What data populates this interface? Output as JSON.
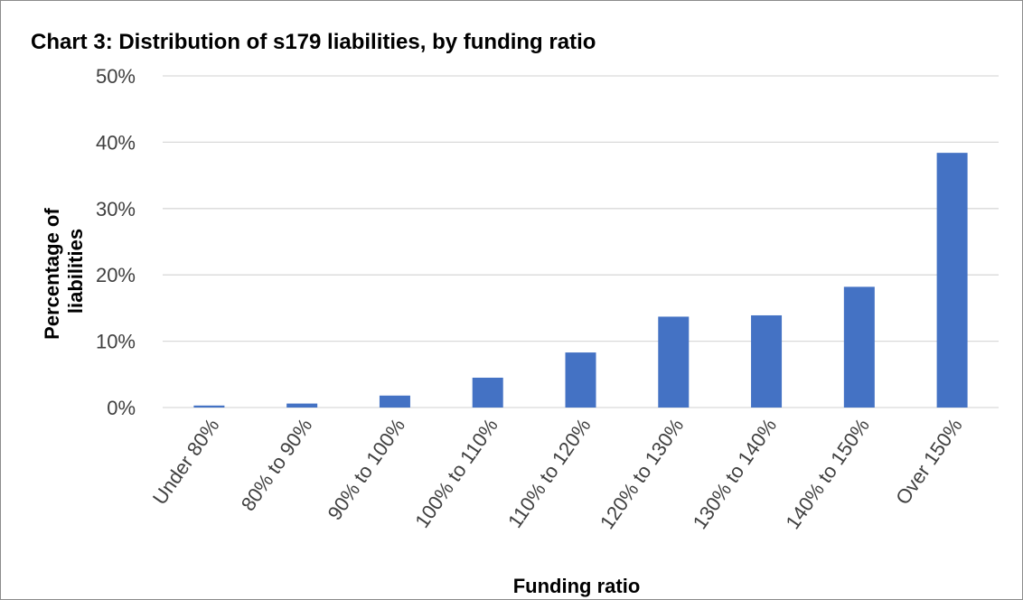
{
  "chart_data": {
    "type": "bar",
    "title": "Chart 3: Distribution of s179 liabilities, by funding ratio",
    "xlabel": "Funding ratio",
    "ylabel_lines": [
      "Percentage of",
      "liabilities"
    ],
    "categories": [
      "Under 80%",
      "80% to 90%",
      "90% to 100%",
      "100% to 110%",
      "110% to 120%",
      "120% to 130%",
      "130% to 140%",
      "140% to 150%",
      "Over 150%"
    ],
    "values": [
      0.3,
      0.6,
      1.8,
      4.5,
      8.3,
      13.7,
      13.9,
      18.2,
      38.4
    ],
    "ylim": [
      0,
      50
    ],
    "yticks": [
      0,
      10,
      20,
      30,
      40,
      50
    ],
    "ytick_labels": [
      "0%",
      "10%",
      "20%",
      "30%",
      "40%",
      "50%"
    ],
    "grid": true,
    "colors": {
      "bar": "#4472C4",
      "grid": "#d9d9d9",
      "frame": "#8c8c8c"
    }
  }
}
